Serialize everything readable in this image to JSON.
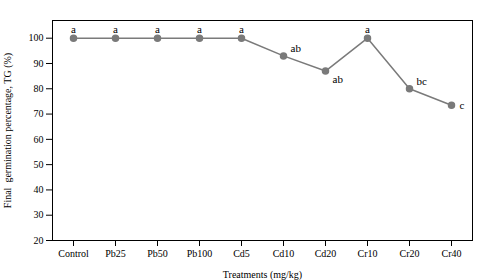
{
  "chart_data": {
    "type": "line",
    "categories": [
      "Control",
      "Pb25",
      "Pb50",
      "Pb100",
      "Cd5",
      "Cd10",
      "Cd20",
      "Cr10",
      "Cr20",
      "Cr40"
    ],
    "values": [
      100,
      100,
      100,
      100,
      100,
      93,
      87,
      100,
      80,
      73.5
    ],
    "color": "#7a7a7a",
    "marker": "circle",
    "xlabel": "Treatments (mg/kg)",
    "ylabel": "Final  germination percentage, TG (%)",
    "ylim": [
      20,
      107
    ],
    "yticks": [
      20,
      30,
      40,
      50,
      60,
      70,
      80,
      90,
      100
    ],
    "grid": false,
    "annotations": [
      {
        "text": "a",
        "x": "Control",
        "y": 100
      },
      {
        "text": "a",
        "x": "Pb25",
        "y": 100
      },
      {
        "text": "a",
        "x": "Pb50",
        "y": 100
      },
      {
        "text": "a",
        "x": "Pb100",
        "y": 100
      },
      {
        "text": "a",
        "x": "Cd5",
        "y": 100
      },
      {
        "text": "ab",
        "x": "Cd10",
        "y": 93
      },
      {
        "text": "ab",
        "x": "Cd20",
        "y": 87
      },
      {
        "text": "a",
        "x": "Cr10",
        "y": 100
      },
      {
        "text": "bc",
        "x": "Cr20",
        "y": 80
      },
      {
        "text": "c",
        "x": "Cr40",
        "y": 73.5
      }
    ]
  }
}
